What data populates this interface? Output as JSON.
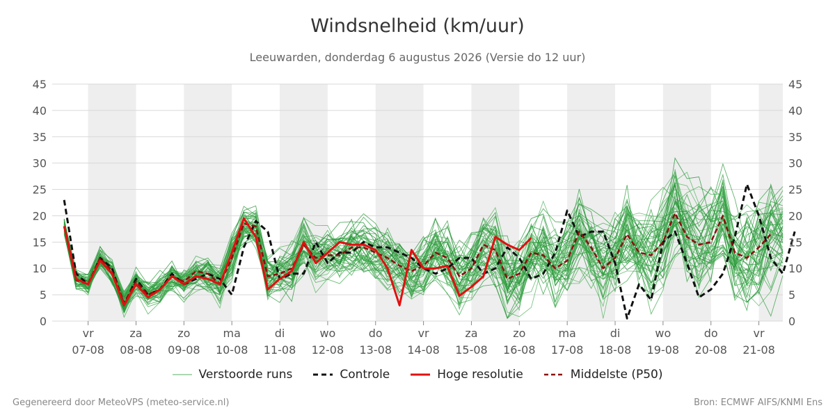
{
  "chart_data": {
    "type": "line",
    "title": "Windsnelheid (km/uur)",
    "subtitle": "Leeuwarden, donderdag  6 augustus 2026 (Versie do 12 uur)",
    "ylim": [
      0,
      45
    ],
    "yticks": [
      0,
      5,
      10,
      15,
      20,
      25,
      30,
      35,
      40,
      45
    ],
    "x_unit": "days since 07-08 00:00 (6-hourly steps)",
    "x_range": [
      -0.75,
      14.5
    ],
    "day_labels": [
      {
        "dow": "vr",
        "date": "07-08"
      },
      {
        "dow": "za",
        "date": "08-08"
      },
      {
        "dow": "zo",
        "date": "09-08"
      },
      {
        "dow": "ma",
        "date": "10-08"
      },
      {
        "dow": "di",
        "date": "11-08"
      },
      {
        "dow": "wo",
        "date": "12-08"
      },
      {
        "dow": "do",
        "date": "13-08"
      },
      {
        "dow": "vr",
        "date": "14-08"
      },
      {
        "dow": "za",
        "date": "15-08"
      },
      {
        "dow": "zo",
        "date": "16-08"
      },
      {
        "dow": "ma",
        "date": "17-08"
      },
      {
        "dow": "di",
        "date": "18-08"
      },
      {
        "dow": "wo",
        "date": "19-08"
      },
      {
        "dow": "do",
        "date": "20-08"
      },
      {
        "dow": "vr",
        "date": "21-08"
      }
    ],
    "x_start": -0.5,
    "x_step": 0.25,
    "series": [
      {
        "name": "Controle",
        "style": "dashed",
        "color": "#111111",
        "values": [
          23,
          9,
          7,
          12,
          10,
          3,
          8,
          5,
          6,
          9,
          7,
          8,
          9,
          8,
          5,
          14,
          19,
          17,
          8,
          9,
          9,
          15,
          11,
          13,
          13,
          15,
          14,
          14,
          13,
          12,
          10,
          9,
          10,
          12,
          12,
          9,
          10,
          14,
          12,
          8,
          9,
          13,
          21,
          16,
          17,
          17,
          11,
          0.5,
          7,
          4,
          15,
          17,
          11,
          4.5,
          6,
          9,
          16,
          26,
          20,
          12,
          9,
          17
        ]
      },
      {
        "name": "Hoge resolutie",
        "style": "solid",
        "color": "#e01010",
        "values": [
          18,
          8,
          7,
          11.5,
          9,
          3,
          7,
          4.5,
          6,
          8.5,
          7,
          8.5,
          8,
          7,
          13,
          19.5,
          16,
          6,
          8,
          9.5,
          15,
          11,
          13,
          15,
          14.5,
          14.5,
          13.5,
          10,
          3,
          13.5,
          10,
          10,
          10.5,
          4.8,
          6.5,
          8.5,
          16,
          14.5,
          13.5,
          15.8
        ]
      },
      {
        "name": "Middelste (P50)",
        "style": "dashed",
        "color": "#8b1010",
        "values": [
          18,
          7.8,
          7,
          12,
          9.5,
          3.5,
          7.5,
          5,
          6,
          8.5,
          7.5,
          9.5,
          9,
          7,
          12,
          18.5,
          18,
          8.5,
          9,
          10,
          14.5,
          12,
          12.5,
          12.5,
          14,
          14,
          13,
          12,
          10.5,
          9.5,
          10.5,
          13,
          12,
          8.5,
          10,
          14.5,
          13.5,
          8,
          9,
          13,
          12.5,
          10,
          11.5,
          17,
          14,
          10,
          12,
          16.5,
          13,
          12.5,
          15,
          20.5,
          16,
          14.5,
          15,
          20,
          13,
          12,
          14,
          16.5
        ]
      },
      {
        "name": "Verstoorde runs",
        "style": "thin",
        "color": "#2e9e3e",
        "values": []
      }
    ],
    "legend": {
      "placement": "bottom",
      "entries": [
        "Verstoorde runs",
        "Controle",
        "Hoge resolutie",
        "Middelste (P50)"
      ]
    }
  },
  "footer": {
    "left": "Gegenereerd door MeteoVPS (meteo-service.nl)",
    "right": "Bron: ECMWF AIFS/KNMI Ens"
  }
}
